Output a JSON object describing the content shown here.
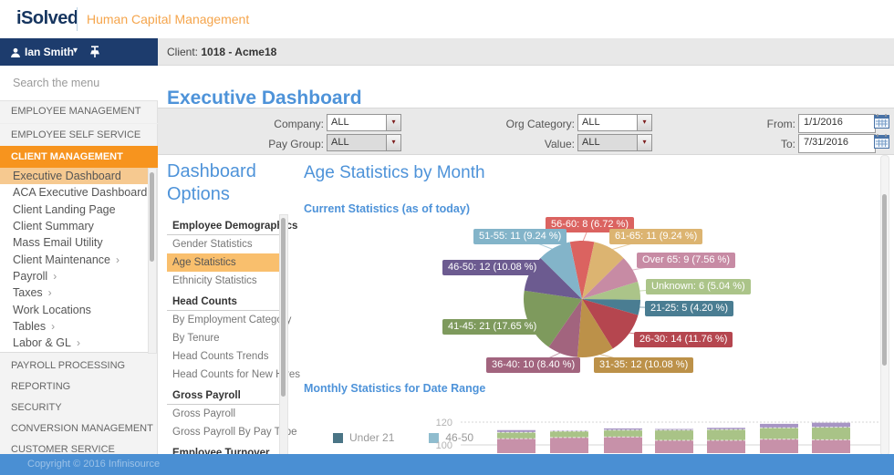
{
  "header": {
    "logo": "iSolved",
    "tagline": "Human Capital Management",
    "user_name": "Ian Smith",
    "client_label": "Client:",
    "client_value": "1018 - Acme18"
  },
  "sidebar": {
    "search_placeholder": "Search the menu",
    "top_items": [
      {
        "label": "EMPLOYEE MANAGEMENT"
      },
      {
        "label": "EMPLOYEE SELF SERVICE"
      }
    ],
    "active_section": "CLIENT MANAGEMENT",
    "submenu": [
      {
        "label": "Executive Dashboard",
        "active": true,
        "has_children": false
      },
      {
        "label": "ACA Executive Dashboard",
        "active": false,
        "has_children": false
      },
      {
        "label": "Client Landing Page",
        "active": false,
        "has_children": false
      },
      {
        "label": "Client Summary",
        "active": false,
        "has_children": false
      },
      {
        "label": "Mass Email Utility",
        "active": false,
        "has_children": false
      },
      {
        "label": "Client Maintenance",
        "active": false,
        "has_children": true
      },
      {
        "label": "Payroll",
        "active": false,
        "has_children": true
      },
      {
        "label": "Taxes",
        "active": false,
        "has_children": true
      },
      {
        "label": "Work Locations",
        "active": false,
        "has_children": false
      },
      {
        "label": "Tables",
        "active": false,
        "has_children": true
      },
      {
        "label": "Labor & GL",
        "active": false,
        "has_children": true
      }
    ],
    "bottom_items": [
      {
        "label": "PAYROLL PROCESSING"
      },
      {
        "label": "REPORTING"
      },
      {
        "label": "SECURITY"
      },
      {
        "label": "CONVERSION MANAGEMENT"
      },
      {
        "label": "CUSTOMER SERVICE"
      }
    ]
  },
  "page": {
    "title": "Executive Dashboard"
  },
  "filters": {
    "company": {
      "label": "Company:",
      "value": "ALL",
      "disabled": false
    },
    "pay_group": {
      "label": "Pay Group:",
      "value": "ALL",
      "disabled": true
    },
    "org_category": {
      "label": "Org Category:",
      "value": "ALL",
      "disabled": false
    },
    "value": {
      "label": "Value:",
      "value": "ALL",
      "disabled": true
    },
    "from": {
      "label": "From:",
      "value": "1/1/2016"
    },
    "to": {
      "label": "To:",
      "value": "7/31/2016"
    }
  },
  "dashboard_options": {
    "title": "Dashboard Options",
    "sections": [
      {
        "header": "Employee Demographics",
        "items": [
          {
            "label": "Gender Statistics",
            "active": false
          },
          {
            "label": "Age Statistics",
            "active": true
          },
          {
            "label": "Ethnicity Statistics",
            "active": false
          }
        ]
      },
      {
        "header": "Head Counts",
        "items": [
          {
            "label": "By Employment Category",
            "active": false
          },
          {
            "label": "By Tenure",
            "active": false
          },
          {
            "label": "Head Counts Trends",
            "active": false
          },
          {
            "label": "Head Counts for New Hires",
            "active": false
          }
        ]
      },
      {
        "header": "Gross Payroll",
        "items": [
          {
            "label": "Gross Payroll",
            "active": false
          },
          {
            "label": "Gross Payroll By Pay Type",
            "active": false
          }
        ]
      },
      {
        "header": "Employee Turnover",
        "items": []
      }
    ]
  },
  "content": {
    "title": "Age Statistics by Month",
    "pie_subtitle": "Current Statistics (as of today)",
    "bar_subtitle": "Monthly Statistics for Date Range"
  },
  "chart_data": [
    {
      "type": "pie",
      "title": "Current Statistics (as of today)",
      "start_angle_deg": -12,
      "total_count": 119,
      "slices": [
        {
          "label": "56-60",
          "count": 8,
          "pct": 6.72,
          "color": "#db6360",
          "text": "56-60: 8 (6.72 %)"
        },
        {
          "label": "61-65",
          "count": 11,
          "pct": 9.24,
          "color": "#dcb471",
          "text": "61-65: 11 (9.24 %)"
        },
        {
          "label": "Over 65",
          "count": 9,
          "pct": 7.56,
          "color": "#c78ba4",
          "text": "Over 65: 9 (7.56 %)"
        },
        {
          "label": "Unknown",
          "count": 6,
          "pct": 5.04,
          "color": "#abc489",
          "text": "Unknown: 6 (5.04 %)"
        },
        {
          "label": "21-25",
          "count": 5,
          "pct": 4.2,
          "color": "#4a7d92",
          "text": "21-25: 5 (4.20 %)"
        },
        {
          "label": "26-30",
          "count": 14,
          "pct": 11.76,
          "color": "#b5464f",
          "text": "26-30: 14 (11.76 %)"
        },
        {
          "label": "31-35",
          "count": 12,
          "pct": 10.08,
          "color": "#bc9149",
          "text": "31-35: 12 (10.08 %)"
        },
        {
          "label": "36-40",
          "count": 10,
          "pct": 8.4,
          "color": "#a2647e",
          "text": "36-40: 10 (8.40 %)"
        },
        {
          "label": "41-45",
          "count": 21,
          "pct": 17.65,
          "color": "#7e9a5d",
          "text": "41-45: 21 (17.65 %)"
        },
        {
          "label": "46-50",
          "count": 12,
          "pct": 10.08,
          "color": "#6c5b90",
          "text": "46-50: 12 (10.08 %)"
        },
        {
          "label": "51-55",
          "count": 11,
          "pct": 9.24,
          "color": "#83b4c9",
          "text": "51-55: 11 (9.24 %)"
        }
      ]
    },
    {
      "type": "bar",
      "stacked": true,
      "title": "Monthly Statistics for Date Range",
      "y_ticks": [
        100,
        120
      ],
      "clipped_by_viewport": true,
      "legend": [
        {
          "label": "Under 21",
          "color": "#4a7586"
        },
        {
          "label": "46-50",
          "color": "#8fbcce"
        }
      ],
      "series_order": [
        "bottom",
        "middle",
        "top"
      ],
      "series_colors": {
        "bottom": "#c791a9",
        "middle": "#a9c387",
        "top": "#a795c4"
      },
      "bars": [
        {
          "tops": [
            105.5,
            111.0,
            113.0
          ]
        },
        {
          "tops": [
            106.5,
            112.0,
            112.5
          ]
        },
        {
          "tops": [
            107.0,
            113.0,
            114.5
          ]
        },
        {
          "tops": [
            104.0,
            113.0,
            114.0
          ]
        },
        {
          "tops": [
            104.0,
            113.5,
            115.0
          ]
        },
        {
          "tops": [
            105.0,
            115.0,
            118.5
          ]
        },
        {
          "tops": [
            104.5,
            115.5,
            119.5
          ]
        }
      ]
    }
  ],
  "footer": {
    "copyright": "Copyright © 2016 Infinisource"
  },
  "icons": {
    "caret_down": "▾",
    "submenu_arrow": "›",
    "select_arrow": "▾"
  }
}
